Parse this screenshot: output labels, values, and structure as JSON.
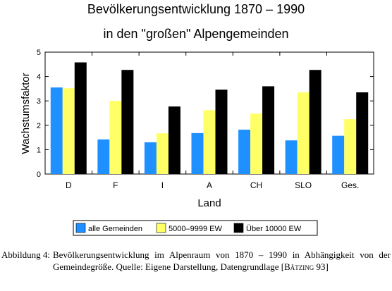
{
  "chart_data": {
    "type": "bar",
    "title_line1": "Bevölkerungsentwicklung 1870 – 1990",
    "title_line2": "in den \"großen\" Alpengemeinden",
    "xlabel": "Land",
    "ylabel": "Wachstumsfaktor",
    "ylim": [
      0,
      5
    ],
    "yticks": [
      "0",
      "1",
      "2",
      "3",
      "4",
      "5"
    ],
    "categories": [
      "D",
      "F",
      "I",
      "A",
      "CH",
      "SLO",
      "Ges."
    ],
    "series": [
      {
        "name": "alle Gemeinden",
        "color": "#1e90ff",
        "values": [
          3.55,
          1.42,
          1.3,
          1.68,
          1.82,
          1.38,
          1.57
        ]
      },
      {
        "name": "5000–9999 EW",
        "color": "#ffff66",
        "values": [
          3.52,
          3.0,
          1.67,
          2.62,
          2.48,
          3.35,
          2.25
        ]
      },
      {
        "name": "Über 10000 EW",
        "color": "#000000",
        "values": [
          4.58,
          4.27,
          2.77,
          3.46,
          3.6,
          4.27,
          3.35
        ]
      }
    ],
    "legend_position": "bottom"
  },
  "caption": {
    "label": "Abbildung 4:",
    "text_before": "Bevölkerungsentwicklung im Alpenraum von 1870 – 1990 in Abhängigkeit von der Gemeindegröße. Quelle: Eigene Darstellung, Datengrundlage [",
    "citation": "Bätzing 93",
    "text_after": "]"
  }
}
